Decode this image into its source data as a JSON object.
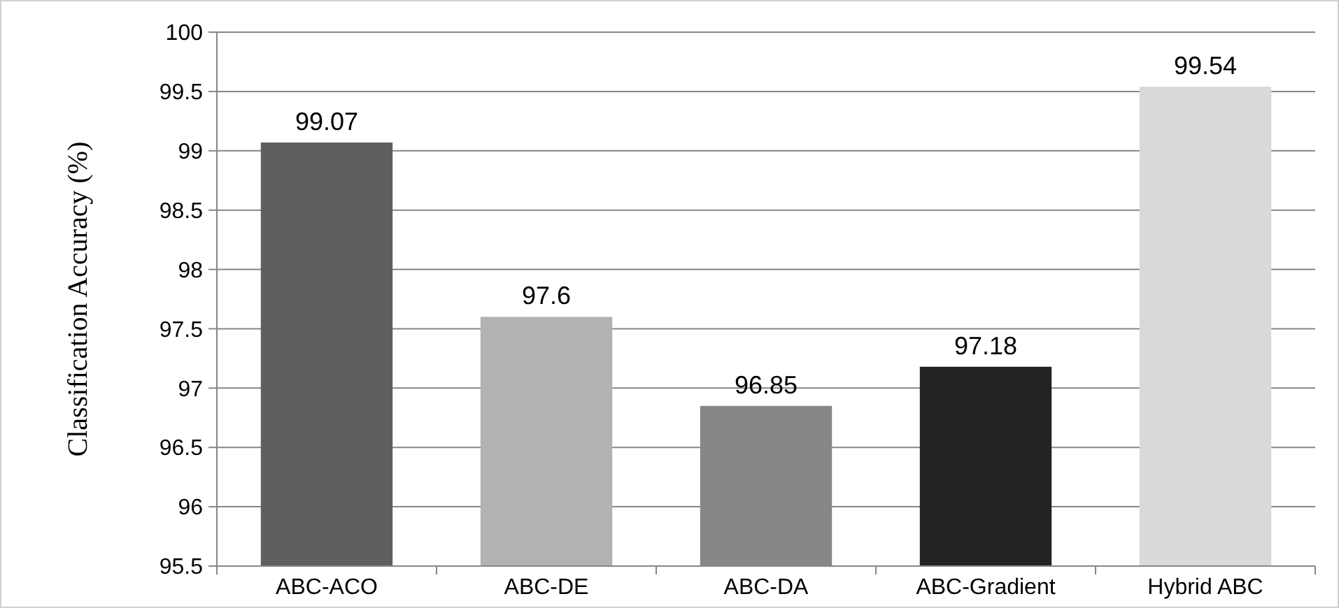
{
  "chart_data": {
    "type": "bar",
    "ylabel": "Classification Accuracy (%)",
    "categories": [
      "ABC-ACO",
      "ABC-DE",
      "ABC-DA",
      "ABC-Gradient",
      "Hybrid ABC"
    ],
    "values": [
      99.07,
      97.6,
      96.85,
      97.18,
      99.54
    ],
    "colors": [
      "#5f5f5f",
      "#b2b2b2",
      "#878787",
      "#232323",
      "#d9d9d9"
    ],
    "ylim": [
      95.5,
      100
    ],
    "yticks": [
      95.5,
      96,
      96.5,
      97,
      97.5,
      98,
      98.5,
      99,
      99.5,
      100
    ],
    "grid": "y",
    "data_labels": true
  }
}
